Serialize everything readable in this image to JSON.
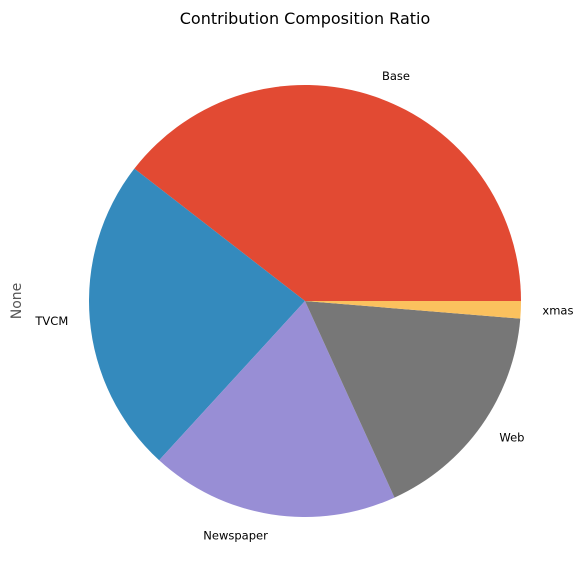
{
  "chart_data": {
    "type": "pie",
    "title": "Contribution Composition Ratio",
    "ylabel": "None",
    "start_angle_deg": 0,
    "direction": "counterclockwise",
    "slices": [
      {
        "label": "Base",
        "value": 39.5,
        "color": "#E24A33"
      },
      {
        "label": "TVCM",
        "value": 23.7,
        "color": "#348ABD"
      },
      {
        "label": "Newspaper",
        "value": 18.6,
        "color": "#988ED5"
      },
      {
        "label": "Web",
        "value": 16.9,
        "color": "#777777"
      },
      {
        "label": "xmas",
        "value": 1.3,
        "color": "#FBC15E"
      }
    ]
  }
}
